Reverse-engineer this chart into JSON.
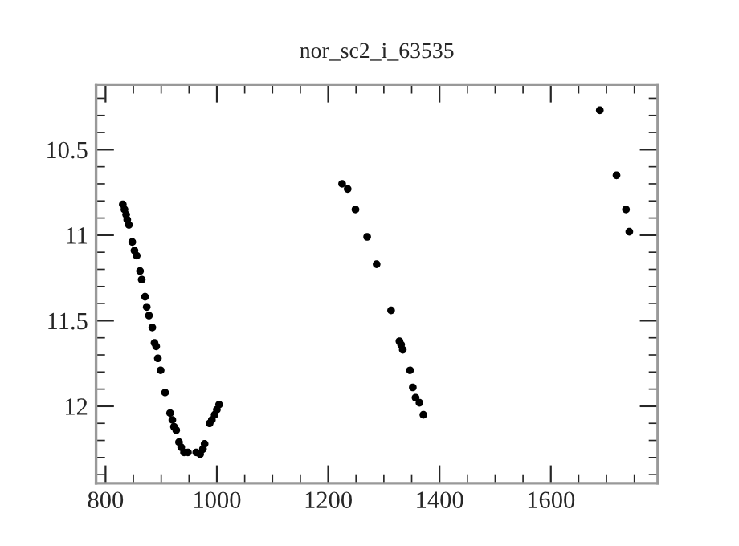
{
  "chart_data": {
    "type": "scatter",
    "title": "nor_sc2_i_63535",
    "x": [
      831,
      834,
      837,
      839,
      842,
      848,
      852,
      856,
      862,
      865,
      871,
      874,
      878,
      884,
      888,
      891,
      894,
      899,
      907,
      916,
      920,
      923,
      927,
      932,
      936,
      941,
      948,
      963,
      970,
      975,
      978,
      987,
      991,
      996,
      1000,
      1004,
      1225,
      1235,
      1249,
      1270,
      1287,
      1313,
      1328,
      1331,
      1334,
      1347,
      1352,
      1357,
      1364,
      1371,
      1688,
      1718,
      1735,
      1741
    ],
    "values": [
      10.82,
      10.85,
      10.88,
      10.91,
      10.94,
      11.04,
      11.09,
      11.12,
      11.21,
      11.26,
      11.36,
      11.42,
      11.47,
      11.54,
      11.63,
      11.65,
      11.72,
      11.79,
      11.92,
      12.04,
      12.08,
      12.12,
      12.14,
      12.21,
      12.24,
      12.27,
      12.27,
      12.27,
      12.28,
      12.25,
      12.22,
      12.1,
      12.08,
      12.05,
      12.02,
      11.99,
      10.7,
      10.73,
      10.85,
      11.01,
      11.17,
      11.44,
      11.62,
      11.64,
      11.67,
      11.79,
      11.89,
      11.95,
      11.98,
      12.05,
      10.27,
      10.65,
      10.85,
      10.98
    ],
    "color": "#000000",
    "marker": "circle",
    "xlim": [
      783,
      1792
    ],
    "ylim": [
      12.45,
      10.12
    ],
    "xticks": [
      800,
      1000,
      1200,
      1400,
      1600
    ],
    "yticks": [
      10.5,
      11,
      11.5,
      12
    ],
    "grid": false
  }
}
